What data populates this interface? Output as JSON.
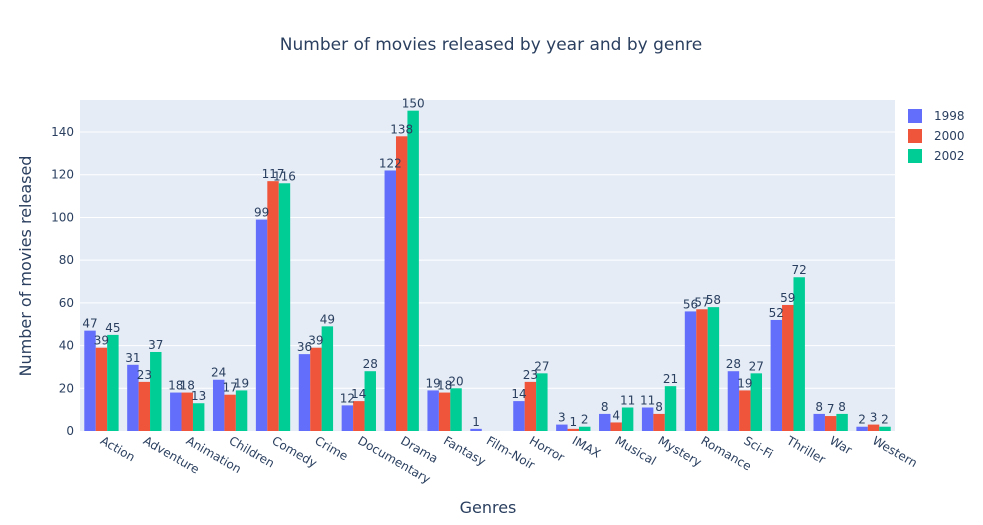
{
  "colors": {
    "plot_bg": "#e5ecf6",
    "grid": "#ffffff",
    "text": "#2a3f5f"
  },
  "chart_data": {
    "type": "bar",
    "title": "Number of movies released by year and by genre",
    "xlabel": "Genres",
    "ylabel": "Number of movies released",
    "ylim": [
      0,
      155
    ],
    "yticks": [
      0,
      20,
      40,
      60,
      80,
      100,
      120,
      140
    ],
    "grid": true,
    "legend_position": "top-right",
    "categories": [
      "Action",
      "Adventure",
      "Animation",
      "Children",
      "Comedy",
      "Crime",
      "Documentary",
      "Drama",
      "Fantasy",
      "Film-Noir",
      "Horror",
      "IMAX",
      "Musical",
      "Mystery",
      "Romance",
      "Sci-Fi",
      "Thriller",
      "War",
      "Western"
    ],
    "series": [
      {
        "name": "1998",
        "color": "#636efa",
        "values": [
          47,
          31,
          18,
          24,
          99,
          36,
          12,
          122,
          19,
          1,
          14,
          3,
          8,
          11,
          56,
          28,
          52,
          8,
          2
        ]
      },
      {
        "name": "2000",
        "color": "#ef553b",
        "values": [
          39,
          23,
          18,
          17,
          117,
          39,
          14,
          138,
          18,
          null,
          23,
          1,
          4,
          8,
          57,
          19,
          59,
          7,
          3
        ]
      },
      {
        "name": "2002",
        "color": "#00cc96",
        "values": [
          45,
          37,
          13,
          19,
          116,
          49,
          28,
          150,
          20,
          null,
          27,
          2,
          11,
          21,
          58,
          27,
          72,
          8,
          2
        ]
      }
    ]
  }
}
